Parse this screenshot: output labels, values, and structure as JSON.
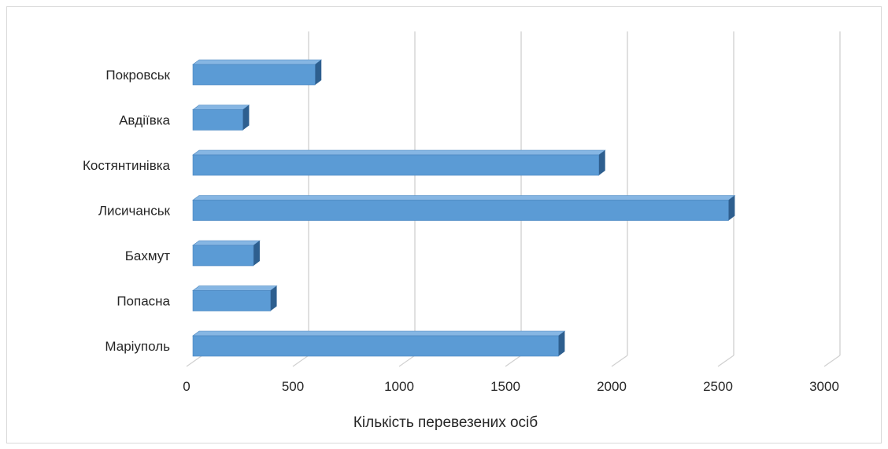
{
  "chart_data": {
    "type": "bar",
    "orientation": "horizontal",
    "style": "3d",
    "categories": [
      "Покровськ",
      "Авдіївка",
      "Костянтинівка",
      "Лисичанськ",
      "Бахмут",
      "Попасна",
      "Маріуполь"
    ],
    "values": [
      575,
      235,
      1910,
      2520,
      285,
      365,
      1720
    ],
    "title": "",
    "xlabel": "Кількість перевезених осіб",
    "ylabel": "",
    "xlim": [
      0,
      3000
    ],
    "xticks": [
      "0",
      "500",
      "1000",
      "1500",
      "2000",
      "2500",
      "3000"
    ],
    "grid": "vertical",
    "legend": "none",
    "colors": {
      "bar_front": "#5b9bd5",
      "bar_top": "#86b6e3",
      "bar_side": "#2e5f8f",
      "grid": "#d0d0d0"
    }
  }
}
